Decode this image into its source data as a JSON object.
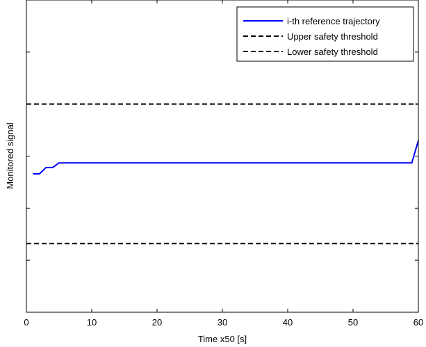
{
  "chart_data": {
    "type": "line",
    "title": "",
    "xlabel": "Time x50 [s]",
    "ylabel": "Monitored signal",
    "xlim": [
      0,
      60
    ],
    "ylim": [
      0,
      6
    ],
    "xticks": [
      0,
      10,
      20,
      30,
      40,
      50,
      60
    ],
    "yticks": [
      1,
      2,
      3,
      4,
      5
    ],
    "ytick_labels_shown": false,
    "grid": false,
    "legend_position": "top-right",
    "series": [
      {
        "name": "i-th reference trajectory",
        "color": "#0000ff",
        "style": "solid",
        "x": [
          1,
          2,
          3,
          4,
          5,
          59,
          60
        ],
        "y": [
          2.66,
          2.66,
          2.78,
          2.78,
          2.87,
          2.87,
          3.3
        ]
      },
      {
        "name": "Upper safety threshold",
        "color": "#000000",
        "style": "dashed",
        "x": [
          0,
          60
        ],
        "y": [
          4.0,
          4.0
        ]
      },
      {
        "name": "Lower safety threshold",
        "color": "#000000",
        "style": "dashed",
        "x": [
          0,
          60
        ],
        "y": [
          1.32,
          1.32
        ]
      }
    ]
  }
}
